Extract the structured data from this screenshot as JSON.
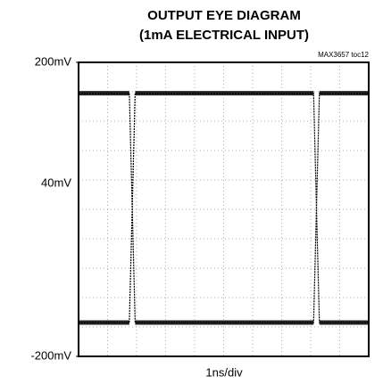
{
  "chart_data": {
    "type": "line",
    "title": "OUTPUT EYE DIAGRAM",
    "subtitle": "(1mA ELECTRICAL INPUT)",
    "annotation": "MAX3657 toc12",
    "ylabel": "40mV",
    "xlabel": "1ns/div",
    "xlim": [
      0,
      10
    ],
    "ylim": [
      -200,
      200
    ],
    "yticks": [
      {
        "value": 200,
        "label": "200mV"
      },
      {
        "value": -200,
        "label": "-200mV"
      }
    ],
    "xgrid": [
      1,
      2,
      3,
      4,
      5,
      6,
      7,
      8,
      9
    ],
    "ygrid": [
      -160,
      -120,
      -80,
      -40,
      0,
      40,
      80,
      120,
      160
    ],
    "grid": true,
    "series": [
      {
        "color": "#000000",
        "x": [
          0,
          1.75,
          1.95,
          8.1,
          8.3,
          10
        ],
        "values": [
          -154,
          -154,
          158,
          158,
          -154,
          -154
        ]
      },
      {
        "color": "#000000",
        "x": [
          0,
          1.75,
          1.95,
          8.1,
          8.3,
          10
        ],
        "values": [
          158,
          158,
          -154,
          -154,
          158,
          158
        ]
      }
    ]
  }
}
